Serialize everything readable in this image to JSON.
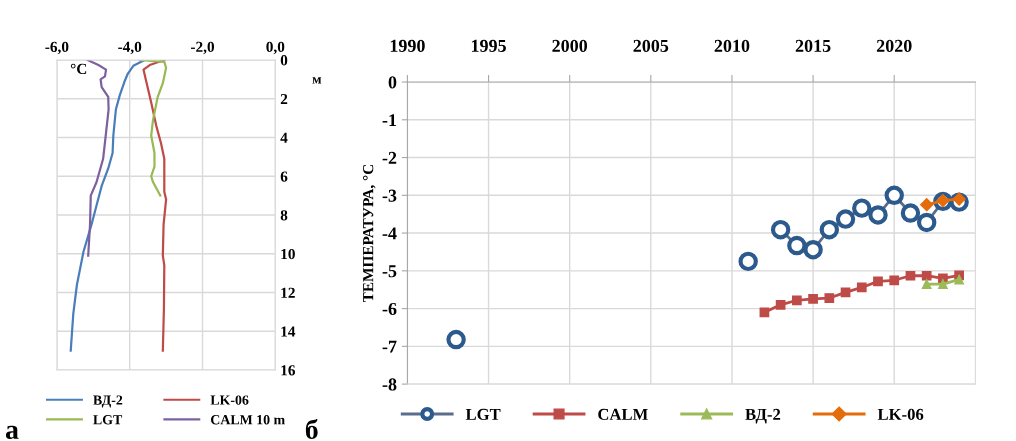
{
  "chart_data": [
    {
      "type": "line",
      "xlabel": "°C",
      "ylabel": "м",
      "annotations": [
        "а"
      ],
      "xlim": [
        -6,
        0
      ],
      "xticks": [
        {
          "value": -6,
          "label": "-6,0"
        },
        {
          "value": -4,
          "label": "-4,0"
        },
        {
          "value": -2,
          "label": "-2,0"
        },
        {
          "value": 0,
          "label": "0,0"
        }
      ],
      "ylim": [
        16,
        0
      ],
      "yticks": [
        0,
        2,
        4,
        6,
        8,
        10,
        12,
        14,
        16
      ],
      "grid": true,
      "legend": "bottom",
      "marker": "none",
      "series": [
        {
          "name": "ВД-2",
          "color": "#4a7ebb",
          "x": [
            -3.59,
            -3.9,
            -4.05,
            -4.14,
            -4.27,
            -4.38,
            -4.45,
            -4.47,
            -4.59,
            -4.77,
            -4.91,
            -5.05,
            -5.27,
            -5.45,
            -5.55,
            -5.62
          ],
          "values": [
            0,
            0.3,
            0.7,
            1.1,
            1.8,
            2.56,
            3.9,
            4.8,
            5.6,
            6.5,
            7.5,
            8.5,
            9.9,
            11.6,
            13.1,
            15
          ]
        },
        {
          "name": "LK-06",
          "color": "#be4b48",
          "x": [
            -3.05,
            -3.45,
            -3.62,
            -3.56,
            -3.41,
            -3.27,
            -3.14,
            -3.05,
            -3.05,
            -3.0,
            -3.07,
            -3.09,
            -3.05,
            -3.06,
            -3.09
          ],
          "values": [
            0,
            0.26,
            0.5,
            1.0,
            2.2,
            3.4,
            4.3,
            5.1,
            6.8,
            7.2,
            8.5,
            10.1,
            10.6,
            12.8,
            15
          ]
        },
        {
          "name": "LGT",
          "color": "#98b954",
          "x": [
            -3.73,
            -3.05,
            -3.0,
            -3.09,
            -3.23,
            -3.36,
            -3.41,
            -3.32,
            -3.32,
            -3.41,
            -3.36,
            -3.16
          ],
          "values": [
            0,
            0.1,
            0.4,
            1.2,
            1.9,
            3.1,
            3.9,
            4.8,
            5.5,
            6.0,
            6.3,
            7.0
          ]
        },
        {
          "name": "CALM 10 m",
          "color": "#7d60a0",
          "x": [
            -5.16,
            -4.86,
            -4.65,
            -4.68,
            -4.8,
            -4.77,
            -4.59,
            -4.58,
            -4.65,
            -4.73,
            -4.91,
            -5.07,
            -5.09,
            -5.14
          ],
          "values": [
            0,
            0.26,
            0.5,
            0.85,
            1.0,
            1.4,
            1.9,
            2.56,
            3.75,
            5.1,
            6.3,
            7.0,
            8.5,
            10.1
          ]
        }
      ]
    },
    {
      "type": "line",
      "ylabel": "ТЕМПЕРАТУРА, °C",
      "annotations": [
        "б"
      ],
      "xlim": [
        1990,
        2025
      ],
      "xticks": [
        1990,
        1995,
        2000,
        2005,
        2010,
        2015,
        2020
      ],
      "ylim": [
        -8,
        0
      ],
      "yticks": [
        0,
        -1,
        -2,
        -3,
        -4,
        -5,
        -6,
        -7,
        -8
      ],
      "grid": true,
      "legend": "bottom",
      "series": [
        {
          "name": "LGT",
          "color": "#2c5a8c",
          "marker": "circle",
          "x": [
            1993,
            2000,
            2011,
            2012,
            2013,
            2014,
            2015,
            2016,
            2017,
            2018,
            2019,
            2020,
            2021,
            2022,
            2023,
            2024
          ],
          "values": [
            -6.82,
            null,
            -4.75,
            null,
            -3.91,
            -4.33,
            -4.44,
            -3.91,
            -3.63,
            -3.34,
            -3.52,
            -3.0,
            -3.47,
            -3.72,
            -3.16,
            -3.18
          ]
        },
        {
          "name": "CALM",
          "color": "#be4b48",
          "marker": "square",
          "x": [
            2012,
            2013,
            2014,
            2015,
            2016,
            2017,
            2018,
            2019,
            2020,
            2021,
            2022,
            2023,
            2024
          ],
          "values": [
            -6.1,
            -5.9,
            -5.78,
            -5.74,
            -5.72,
            -5.57,
            -5.44,
            -5.28,
            -5.25,
            -5.13,
            -5.13,
            -5.2,
            -5.12
          ]
        },
        {
          "name": "ВД-2",
          "color": "#9bbb59",
          "marker": "triangle",
          "x": [
            2022,
            2023,
            2024
          ],
          "values": [
            -5.35,
            -5.35,
            -5.23
          ]
        },
        {
          "name": "LK-06",
          "color": "#e46c0a",
          "marker": "diamond",
          "x": [
            2022,
            2023,
            2024
          ],
          "values": [
            -3.25,
            -3.14,
            -3.1
          ]
        }
      ]
    }
  ]
}
